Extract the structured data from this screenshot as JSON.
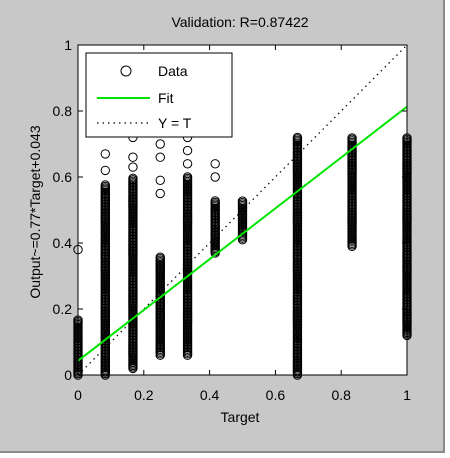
{
  "chart_data": {
    "type": "scatter",
    "title": "Validation: R=0.87422",
    "xlabel": "Target",
    "ylabel": "Output~=0.77*Target+0.043",
    "xlim": [
      0,
      1
    ],
    "ylim": [
      0,
      1
    ],
    "xticks": [
      0,
      0.2,
      0.4,
      0.6,
      0.8,
      1
    ],
    "yticks": [
      0,
      0.2,
      0.4,
      0.6,
      0.8,
      1
    ],
    "grid": false,
    "legend_position": "top-left",
    "colors": {
      "fit": "#00e600",
      "identity": "#000000",
      "data": "#000000",
      "figure_bg": "#c8c8c8",
      "axes_bg": "#ffffff"
    },
    "series": [
      {
        "name": "Data",
        "marker": "open-circle",
        "columns": [
          {
            "x": 0.0,
            "ymin": 0.0,
            "ymax": 0.17,
            "outliers": [
              0.38
            ]
          },
          {
            "x": 0.083,
            "ymin": 0.0,
            "ymax": 0.58,
            "outliers": [
              0.62,
              0.67
            ]
          },
          {
            "x": 0.167,
            "ymin": 0.02,
            "ymax": 0.6,
            "outliers": [
              0.63,
              0.66,
              0.72
            ]
          },
          {
            "x": 0.25,
            "ymin": 0.06,
            "ymax": 0.36,
            "outliers": [
              0.55,
              0.59,
              0.66,
              0.7
            ]
          },
          {
            "x": 0.333,
            "ymin": 0.06,
            "ymax": 0.6,
            "outliers": [
              0.64,
              0.68,
              0.72
            ]
          },
          {
            "x": 0.417,
            "ymin": 0.37,
            "ymax": 0.53,
            "outliers": [
              0.6,
              0.64
            ]
          },
          {
            "x": 0.5,
            "ymin": 0.41,
            "ymax": 0.53,
            "outliers": []
          },
          {
            "x": 0.667,
            "ymin": 0.0,
            "ymax": 0.72,
            "outliers": []
          },
          {
            "x": 0.833,
            "ymin": 0.39,
            "ymax": 0.72,
            "outliers": []
          },
          {
            "x": 1.0,
            "ymin": 0.12,
            "ymax": 0.72,
            "outliers": []
          }
        ]
      },
      {
        "name": "Fit",
        "slope": 0.77,
        "intercept": 0.043
      },
      {
        "name": "Y = T",
        "slope": 1,
        "intercept": 0
      }
    ]
  }
}
